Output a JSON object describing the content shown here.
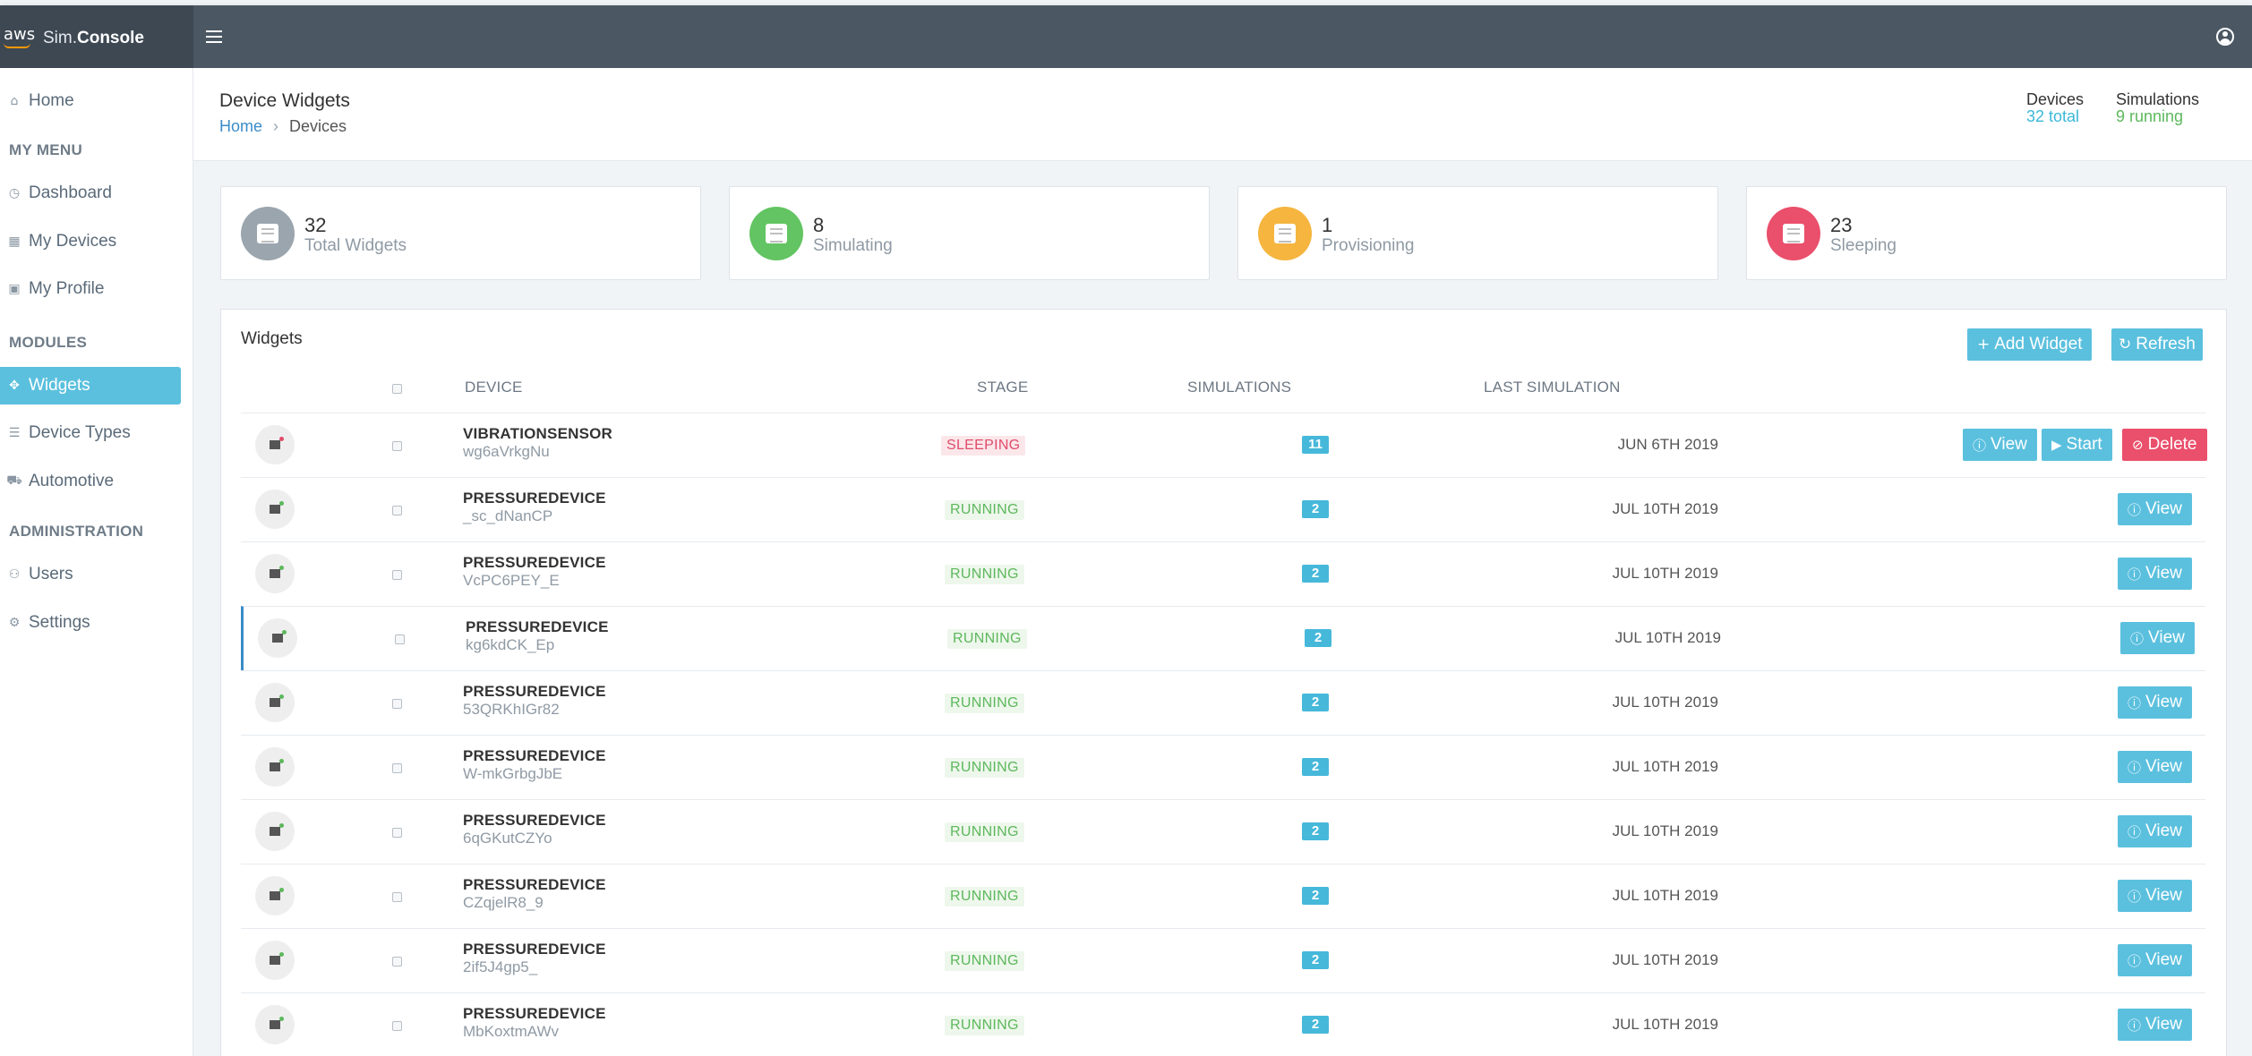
{
  "app": {
    "brand_prefix": "Sim.",
    "brand_bold": "Console",
    "aws_logo": "aws"
  },
  "sidebar": {
    "home": "Home",
    "my_menu_heading": "MY MENU",
    "dashboard": "Dashboard",
    "my_devices": "My Devices",
    "my_profile": "My Profile",
    "modules_heading": "MODULES",
    "widgets": "Widgets",
    "device_types": "Device Types",
    "automotive": "Automotive",
    "administration_heading": "ADMINISTRATION",
    "users": "Users",
    "settings": "Settings"
  },
  "header": {
    "title": "Device Widgets",
    "breadcrumb_home": "Home",
    "breadcrumb_current": "Devices",
    "devices_label": "Devices",
    "devices_value": "32 total",
    "simulations_label": "Simulations",
    "simulations_value": "9 running"
  },
  "stats": [
    {
      "value": "32",
      "label": "Total Widgets",
      "color": "#9aa5ae"
    },
    {
      "value": "8",
      "label": "Simulating",
      "color": "#62c462"
    },
    {
      "value": "1",
      "label": "Provisioning",
      "color": "#f5b53f"
    },
    {
      "value": "23",
      "label": "Sleeping",
      "color": "#ea4f6b"
    }
  ],
  "panel": {
    "title": "Widgets",
    "add_widget_label": "Add Widget",
    "refresh_label": "Refresh"
  },
  "table": {
    "columns": {
      "device": "DEVICE",
      "stage": "STAGE",
      "simulations": "SIMULATIONS",
      "last_simulation": "LAST SIMULATION"
    },
    "rows": [
      {
        "name": "VIBRATIONSENSOR",
        "id": "wg6aVrkgNu",
        "stage": "SLEEPING",
        "sims": "11",
        "last": "JUN 6TH 2019"
      },
      {
        "name": "PRESSUREDEVICE",
        "id": "_sc_dNanCP",
        "stage": "RUNNING",
        "sims": "2",
        "last": "JUL 10TH 2019"
      },
      {
        "name": "PRESSUREDEVICE",
        "id": "VcPC6PEY_E",
        "stage": "RUNNING",
        "sims": "2",
        "last": "JUL 10TH 2019"
      },
      {
        "name": "PRESSUREDEVICE",
        "id": "kg6kdCK_Ep",
        "stage": "RUNNING",
        "sims": "2",
        "last": "JUL 10TH 2019"
      },
      {
        "name": "PRESSUREDEVICE",
        "id": "53QRKhIGr82",
        "stage": "RUNNING",
        "sims": "2",
        "last": "JUL 10TH 2019"
      },
      {
        "name": "PRESSUREDEVICE",
        "id": "W-mkGrbgJbE",
        "stage": "RUNNING",
        "sims": "2",
        "last": "JUL 10TH 2019"
      },
      {
        "name": "PRESSUREDEVICE",
        "id": "6qGKutCZYo",
        "stage": "RUNNING",
        "sims": "2",
        "last": "JUL 10TH 2019"
      },
      {
        "name": "PRESSUREDEVICE",
        "id": "CZqjelR8_9",
        "stage": "RUNNING",
        "sims": "2",
        "last": "JUL 10TH 2019"
      },
      {
        "name": "PRESSUREDEVICE",
        "id": "2if5J4gp5_",
        "stage": "RUNNING",
        "sims": "2",
        "last": "JUL 10TH 2019"
      },
      {
        "name": "PRESSUREDEVICE",
        "id": "MbKoxtmAWv",
        "stage": "RUNNING",
        "sims": "2",
        "last": "JUL 10TH 2019"
      }
    ],
    "view_label": "View",
    "start_label": "Start",
    "delete_label": "Delete"
  },
  "colors": {
    "topbar": "#4b5864",
    "accent": "#5bc0de",
    "running": "#5cb85c",
    "sleeping": "#e14b6a"
  }
}
